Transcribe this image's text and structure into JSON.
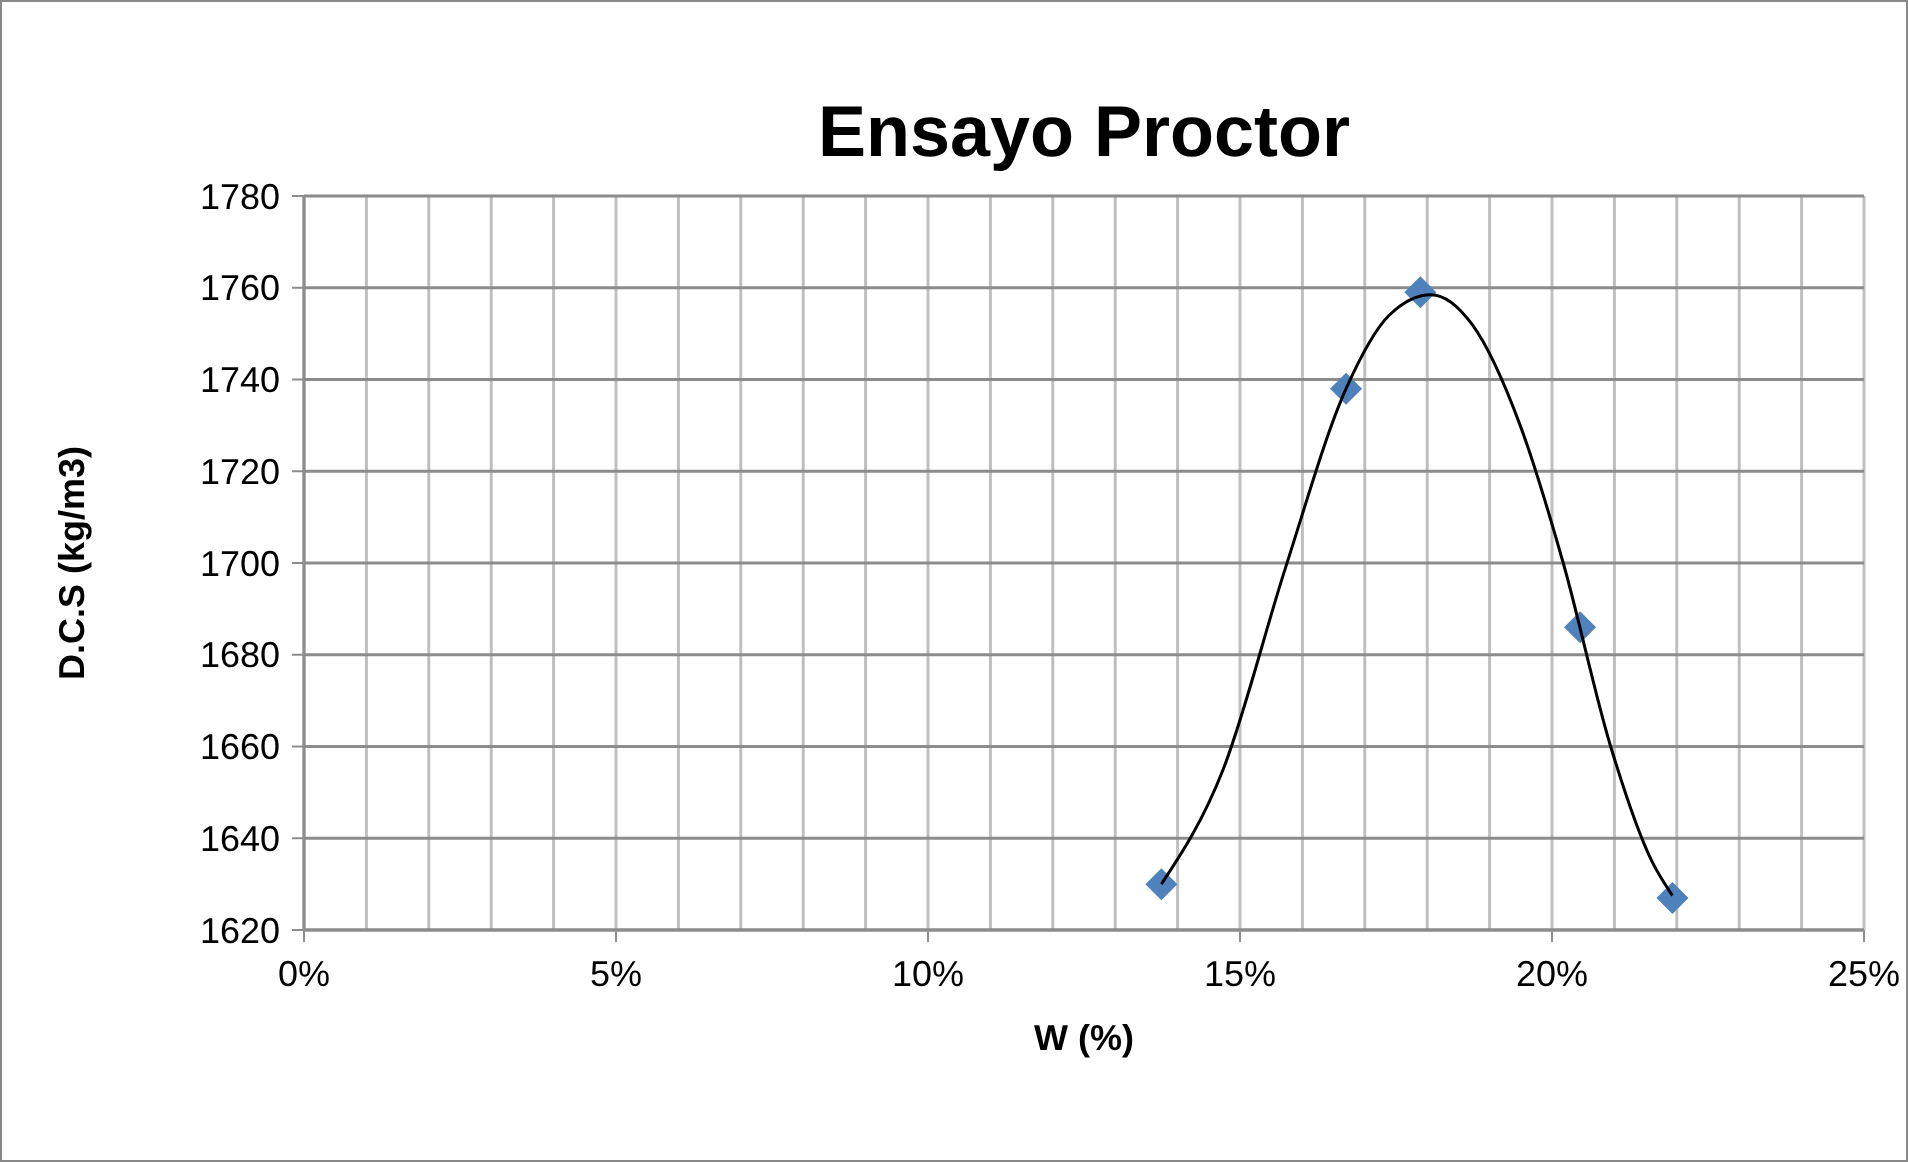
{
  "chart_data": {
    "type": "scatter",
    "title": "Ensayo Proctor",
    "xlabel": "W (%)",
    "ylabel": "D.C.S (kg/m3)",
    "xlim": [
      0,
      25
    ],
    "xticks": [
      {
        "value": 0,
        "label": "0%"
      },
      {
        "value": 1,
        "label": null
      },
      {
        "value": 2,
        "label": null
      },
      {
        "value": 3,
        "label": null
      },
      {
        "value": 4,
        "label": null
      },
      {
        "value": 5,
        "label": "5%"
      },
      {
        "value": 6,
        "label": null
      },
      {
        "value": 7,
        "label": null
      },
      {
        "value": 8,
        "label": null
      },
      {
        "value": 9,
        "label": null
      },
      {
        "value": 10,
        "label": "10%"
      },
      {
        "value": 11,
        "label": null
      },
      {
        "value": 12,
        "label": null
      },
      {
        "value": 13,
        "label": null
      },
      {
        "value": 14,
        "label": null
      },
      {
        "value": 15,
        "label": "15%"
      },
      {
        "value": 16,
        "label": null
      },
      {
        "value": 17,
        "label": null
      },
      {
        "value": 18,
        "label": null
      },
      {
        "value": 19,
        "label": null
      },
      {
        "value": 20,
        "label": "20%"
      },
      {
        "value": 21,
        "label": null
      },
      {
        "value": 22,
        "label": null
      },
      {
        "value": 23,
        "label": null
      },
      {
        "value": 24,
        "label": null
      },
      {
        "value": 25,
        "label": "25%"
      }
    ],
    "ylim": [
      1620,
      1780
    ],
    "yticks": [
      1620,
      1640,
      1660,
      1680,
      1700,
      1720,
      1740,
      1760,
      1780
    ],
    "grid": true,
    "series": [
      {
        "color": "#4f81bd",
        "marker": "diamond",
        "x": [
          13.74,
          16.7,
          17.89,
          20.45,
          21.93
        ],
        "values": [
          1630,
          1738,
          1759,
          1686,
          1627
        ]
      },
      {
        "type": "line",
        "color": "#000000",
        "marker": "none",
        "line_style": "solid",
        "x": [
          13.74,
          14.73,
          15.73,
          16.7,
          17.39,
          18.06,
          18.72,
          19.49,
          20.18,
          20.94,
          21.6,
          21.93
        ],
        "values": [
          1630,
          1655,
          1699,
          1738,
          1754,
          1758.5,
          1752,
          1730,
          1700,
          1660,
          1635,
          1627.5
        ]
      }
    ]
  }
}
